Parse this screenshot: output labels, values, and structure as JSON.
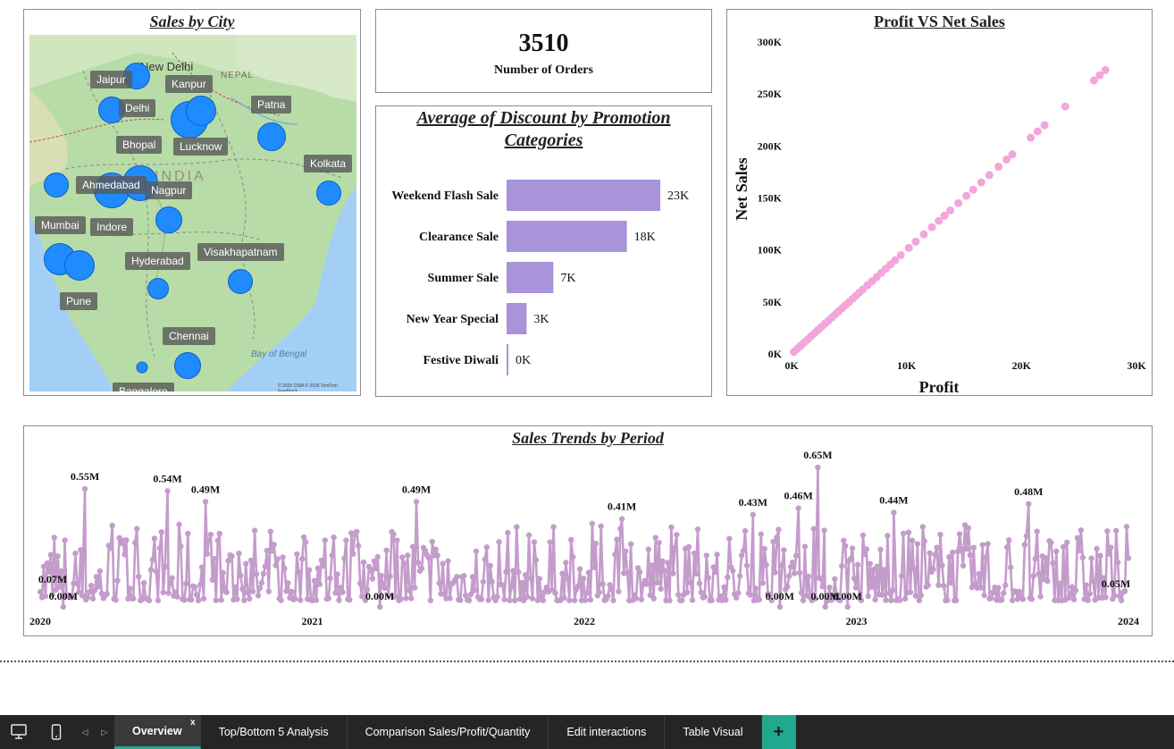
{
  "map_panel": {
    "title": "Sales by City",
    "country_label": "INDIA",
    "region_labels": [
      "New Delhi",
      "NEPAL",
      "Bay of Bengal"
    ],
    "attribution": "© 2025 OSM © 2025 TomTom Feedback",
    "cities": [
      "Jaipur",
      "Delhi",
      "Kanpur",
      "Patna",
      "Bhopal",
      "Lucknow",
      "Kolkata",
      "Ahmedabad",
      "Nagpur",
      "Mumbai",
      "Indore",
      "Visakhapatnam",
      "Hyderabad",
      "Pune",
      "Chennai",
      "Bangalore"
    ],
    "bubble_color": "#1f8bff"
  },
  "kpi": {
    "value": "3510",
    "label": "Number of Orders"
  },
  "discount_panel": {
    "title_line1": "Average of Discount by Promotion",
    "title_line2": "Categories",
    "chart_data": {
      "type": "bar",
      "orientation": "horizontal",
      "categories": [
        "Weekend Flash Sale",
        "Clearance Sale",
        "Summer Sale",
        "New Year Special",
        "Festive Diwali"
      ],
      "values": [
        23000,
        18000,
        7000,
        3000,
        0
      ],
      "data_labels": [
        "23K",
        "18K",
        "7K",
        "3K",
        "0K"
      ],
      "color": "#a993d9"
    }
  },
  "scatter_panel": {
    "title": "Profit VS Net Sales",
    "chart_data": {
      "type": "scatter",
      "title": "Profit VS Net Sales",
      "xlabel": "Profit",
      "ylabel": "Net Sales",
      "xlim": [
        0,
        30000
      ],
      "ylim": [
        0,
        300000
      ],
      "x_ticks": [
        "0K",
        "10K",
        "20K",
        "30K"
      ],
      "y_ticks": [
        "0K",
        "50K",
        "100K",
        "150K",
        "200K",
        "250K",
        "300K"
      ],
      "color": "#f2a6da",
      "points": [
        [
          200,
          2000
        ],
        [
          500,
          5000
        ],
        [
          800,
          8000
        ],
        [
          1100,
          11000
        ],
        [
          1400,
          14000
        ],
        [
          1700,
          17000
        ],
        [
          2000,
          20000
        ],
        [
          2300,
          23000
        ],
        [
          2600,
          26000
        ],
        [
          2900,
          29000
        ],
        [
          3200,
          32000
        ],
        [
          3500,
          35000
        ],
        [
          3800,
          38000
        ],
        [
          4100,
          41000
        ],
        [
          4400,
          44000
        ],
        [
          4700,
          47000
        ],
        [
          5000,
          50000
        ],
        [
          5300,
          53000
        ],
        [
          5600,
          56000
        ],
        [
          5900,
          59000
        ],
        [
          6200,
          62000
        ],
        [
          6600,
          66000
        ],
        [
          7000,
          70000
        ],
        [
          7400,
          74000
        ],
        [
          7800,
          78000
        ],
        [
          8200,
          82000
        ],
        [
          8600,
          86000
        ],
        [
          9000,
          90000
        ],
        [
          9500,
          95000
        ],
        [
          10200,
          102000
        ],
        [
          10800,
          108000
        ],
        [
          11500,
          115000
        ],
        [
          12200,
          122000
        ],
        [
          12800,
          128000
        ],
        [
          13300,
          133000
        ],
        [
          13800,
          138000
        ],
        [
          14500,
          145000
        ],
        [
          15200,
          152000
        ],
        [
          15800,
          158000
        ],
        [
          16500,
          165000
        ],
        [
          17200,
          172000
        ],
        [
          18000,
          180000
        ],
        [
          18700,
          187000
        ],
        [
          19200,
          192000
        ],
        [
          20800,
          208000
        ],
        [
          21400,
          214000
        ],
        [
          22000,
          220000
        ],
        [
          23800,
          238000
        ],
        [
          26300,
          263000
        ],
        [
          26800,
          268000
        ],
        [
          27300,
          273000
        ]
      ]
    }
  },
  "trend_panel": {
    "title": "Sales Trends by Period",
    "chart_data": {
      "type": "line",
      "title": "Sales Trends by Period",
      "x_range": [
        "2020-01-01",
        "2024-01-01"
      ],
      "x_ticks": [
        "2020",
        "2021",
        "2022",
        "2023",
        "2024"
      ],
      "ylim": [
        0,
        0.7
      ],
      "y_unit": "M",
      "color": "#c49ccb",
      "annotations": [
        {
          "date": "2020-01-01",
          "value": 0.07,
          "label": "0.07M"
        },
        {
          "date": "2020-02-01",
          "value": 0.0,
          "label": "0.00M"
        },
        {
          "date": "2020-03-01",
          "value": 0.55,
          "label": "0.55M"
        },
        {
          "date": "2020-06-20",
          "value": 0.54,
          "label": "0.54M"
        },
        {
          "date": "2020-08-10",
          "value": 0.49,
          "label": "0.49M"
        },
        {
          "date": "2021-04-01",
          "value": 0.0,
          "label": "0.00M"
        },
        {
          "date": "2021-05-20",
          "value": 0.49,
          "label": "0.49M"
        },
        {
          "date": "2022-02-20",
          "value": 0.41,
          "label": "0.41M"
        },
        {
          "date": "2022-08-15",
          "value": 0.43,
          "label": "0.43M"
        },
        {
          "date": "2022-09-20",
          "value": 0.0,
          "label": "0.00M"
        },
        {
          "date": "2022-10-15",
          "value": 0.46,
          "label": "0.46M"
        },
        {
          "date": "2022-11-10",
          "value": 0.65,
          "label": "0.65M"
        },
        {
          "date": "2022-11-20",
          "value": 0.0,
          "label": "0.00M"
        },
        {
          "date": "2022-12-20",
          "value": 0.0,
          "label": "0.00M"
        },
        {
          "date": "2023-02-20",
          "value": 0.44,
          "label": "0.44M"
        },
        {
          "date": "2023-08-20",
          "value": 0.48,
          "label": "0.48M"
        },
        {
          "date": "2023-12-20",
          "value": 0.05,
          "label": "0.05M"
        }
      ]
    }
  },
  "bottom_bar": {
    "tabs": [
      "Overview",
      "Top/Bottom 5 Analysis",
      "Comparison Sales/Profit/Quantity",
      "Edit interactions",
      "Table Visual"
    ],
    "active_tab": "Overview",
    "close_glyph": "x",
    "add_glyph": "+",
    "accent_color": "#21a88f"
  }
}
